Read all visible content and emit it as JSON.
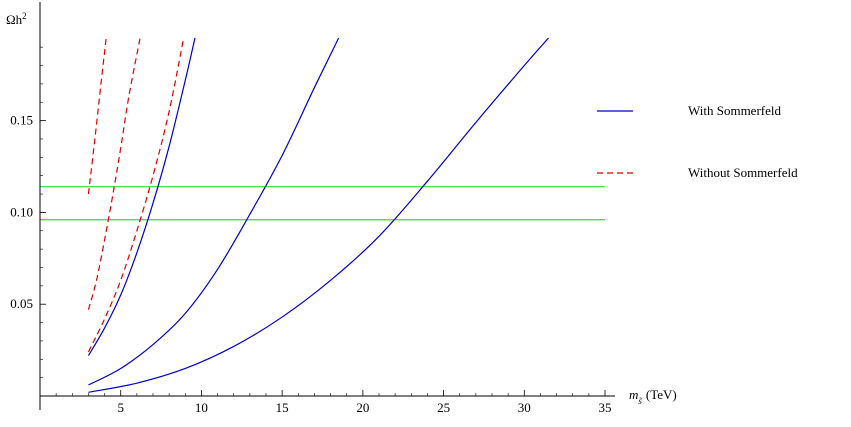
{
  "chart_data": {
    "type": "line",
    "title": "",
    "xlabel": {
      "var": "m",
      "sub": "s̃",
      "unit": "(TeV)"
    },
    "ylabel": {
      "base": "Ωh",
      "sup": "2"
    },
    "xlim": [
      0,
      35
    ],
    "ylim": [
      0,
      0.195
    ],
    "x_ticks": [
      5,
      10,
      15,
      20,
      25,
      30,
      35
    ],
    "y_ticks": [
      0.05,
      0.1,
      0.15
    ],
    "x_tick_labels": [
      "5",
      "10",
      "15",
      "20",
      "25",
      "30",
      "35"
    ],
    "y_tick_labels": [
      "0.05",
      "0.10",
      "0.15"
    ],
    "grid": false,
    "legend_position": "right",
    "legend": [
      {
        "label": "With Sommerfeld",
        "style": "solid",
        "color": "#0000cc"
      },
      {
        "label": "Without Sommerfeld",
        "style": "dashed",
        "color": "#dd0000"
      }
    ],
    "bands": [
      {
        "y": 0.096,
        "color": "#33dd33"
      },
      {
        "y": 0.114,
        "color": "#33dd33"
      }
    ],
    "series": [
      {
        "style": "solid",
        "color": "#0000cc",
        "x": [
          3,
          4,
          5,
          6,
          7,
          8,
          9,
          9.6
        ],
        "y": [
          0.022,
          0.037,
          0.055,
          0.078,
          0.105,
          0.136,
          0.172,
          0.195
        ]
      },
      {
        "style": "solid",
        "color": "#0000cc",
        "x": [
          3,
          5,
          7,
          9,
          11,
          13,
          15,
          17,
          18.5
        ],
        "y": [
          0.006,
          0.015,
          0.028,
          0.045,
          0.069,
          0.099,
          0.131,
          0.168,
          0.195
        ]
      },
      {
        "style": "solid",
        "color": "#0000cc",
        "x": [
          3,
          6,
          9,
          12,
          15,
          18,
          21,
          24,
          27,
          30,
          31.5
        ],
        "y": [
          0.002,
          0.007,
          0.015,
          0.027,
          0.043,
          0.063,
          0.087,
          0.117,
          0.149,
          0.18,
          0.195
        ]
      },
      {
        "style": "dashed",
        "color": "#dd0000",
        "x": [
          3,
          3.4,
          3.8,
          4.1
        ],
        "y": [
          0.11,
          0.14,
          0.172,
          0.195
        ]
      },
      {
        "style": "dashed",
        "color": "#dd0000",
        "x": [
          3,
          3.5,
          4,
          4.5,
          5,
          5.5,
          6.2
        ],
        "y": [
          0.047,
          0.063,
          0.085,
          0.109,
          0.135,
          0.163,
          0.195
        ]
      },
      {
        "style": "dashed",
        "color": "#dd0000",
        "x": [
          3,
          4,
          5,
          6,
          7,
          8,
          8.9
        ],
        "y": [
          0.024,
          0.042,
          0.063,
          0.09,
          0.12,
          0.155,
          0.195
        ]
      }
    ]
  }
}
